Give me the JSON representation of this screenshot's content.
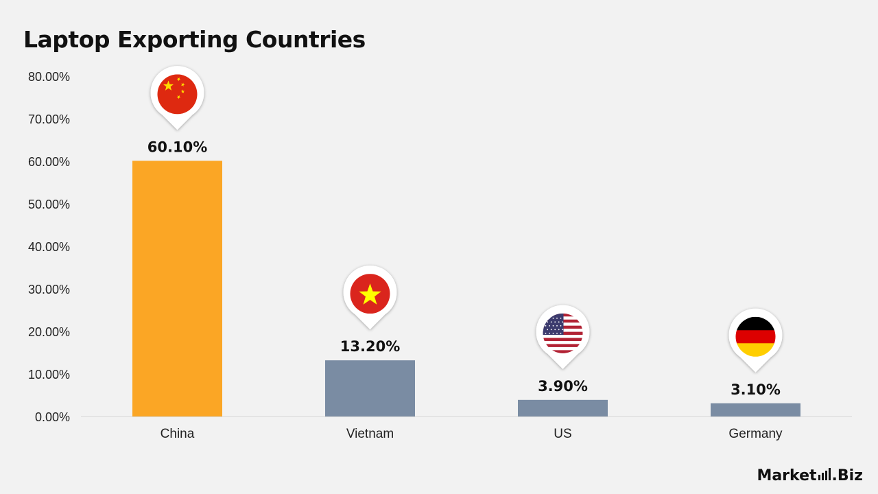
{
  "title": "Laptop Exporting Countries",
  "brand": {
    "part1": "Market",
    "part2": ".Biz"
  },
  "colors": {
    "highlight": "#FBA625",
    "bar": "#7A8CA3",
    "axis": "#D9D9D9",
    "text": "#222222"
  },
  "chart_data": {
    "type": "bar",
    "title": "Laptop Exporting Countries",
    "categories": [
      "China",
      "Vietnam",
      "US",
      "Germany"
    ],
    "values": [
      60.1,
      13.2,
      3.9,
      3.1
    ],
    "data_labels": [
      "60.10%",
      "13.20%",
      "3.90%",
      "3.10%"
    ],
    "flags": [
      "china-flag",
      "vietnam-flag",
      "us-flag",
      "germany-flag"
    ],
    "highlight_index": 0,
    "ylim": [
      0,
      80
    ],
    "yticks": [
      0,
      10,
      20,
      30,
      40,
      50,
      60,
      70,
      80
    ],
    "ytick_labels": [
      "0.00%",
      "10.00%",
      "20.00%",
      "30.00%",
      "40.00%",
      "50.00%",
      "60.00%",
      "70.00%",
      "80.00%"
    ],
    "grid": false,
    "legend": "none",
    "xlabel": "",
    "ylabel": ""
  }
}
